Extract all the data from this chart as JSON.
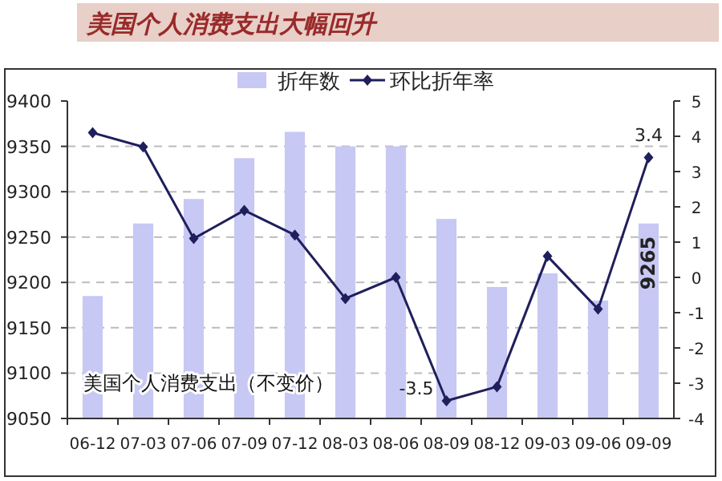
{
  "chart_data": {
    "type": "bar",
    "title": "美国个人消费支出大幅回升",
    "categories": [
      "06-12",
      "07-03",
      "07-06",
      "07-09",
      "07-12",
      "08-03",
      "08-06",
      "08-09",
      "08-12",
      "09-03",
      "09-06",
      "09-09"
    ],
    "series": [
      {
        "name": "折年数",
        "color": "#c8c8f4",
        "values": [
          9185,
          9265,
          9292,
          9337,
          9366,
          9350,
          9350,
          9270,
          9195,
          9210,
          9180,
          9265
        ],
        "value_labels": [
          null,
          null,
          null,
          null,
          null,
          null,
          null,
          null,
          null,
          null,
          null,
          "9265"
        ]
      },
      {
        "name": "环比折年率",
        "type": "line",
        "axis": "y2",
        "color": "#1f1f5c",
        "marker": "diamond",
        "values": [
          4.1,
          3.7,
          1.1,
          1.9,
          1.2,
          -0.6,
          0.0,
          -3.5,
          -3.1,
          0.6,
          -0.9,
          3.4
        ],
        "value_labels": [
          null,
          null,
          null,
          null,
          null,
          null,
          null,
          "-3.5",
          null,
          null,
          null,
          "3.4"
        ]
      }
    ],
    "ylim": [
      9050,
      9400
    ],
    "yticks": [
      9050,
      9100,
      9150,
      9200,
      9250,
      9300,
      9350,
      9400
    ],
    "y2lim": [
      -4,
      5
    ],
    "y2ticks": [
      -4,
      -3,
      -2,
      -1,
      0,
      1,
      2,
      3,
      4,
      5
    ],
    "grid": "y",
    "legend": "top",
    "annotations": [
      {
        "text": "美国个人消费支出（不变价）"
      }
    ]
  }
}
